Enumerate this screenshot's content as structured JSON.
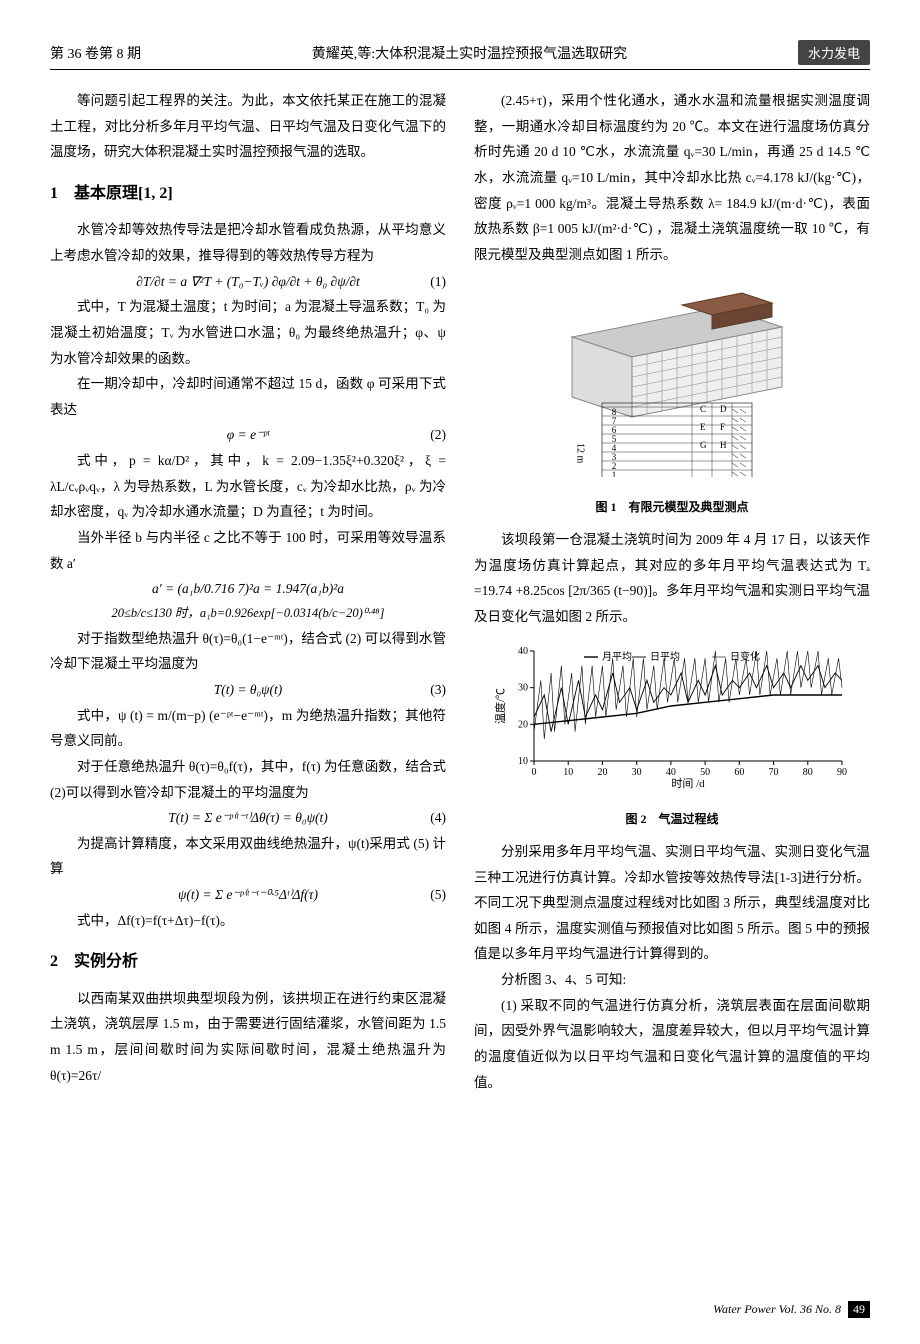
{
  "header": {
    "left": "第 36 卷第 8 期",
    "center": "黄耀英,等:大体积混凝土实时温控预报气温选取研究",
    "badge": "水力发电"
  },
  "left_col": {
    "intro": "等问题引起工程界的关注。为此，本文依托某正在施工的混凝土工程，对比分析多年月平均气温、日平均气温及日变化气温下的温度场，研究大体积混凝土实时温控预报气温的选取。",
    "sec1_title": "1　基本原理[1, 2]",
    "sec1_p1": "水管冷却等效热传导法是把冷却水管看成负热源，从平均意义上考虑水管冷却的效果，推导得到的等效热传导方程为",
    "eq1": "∂T/∂t = a ∇²T + (T₀−Tᵥ) ∂φ/∂t + θ₀ ∂ψ/∂t",
    "eq1_num": "(1)",
    "sec1_p2": "式中，T 为混凝土温度；t 为时间；a 为混凝土导温系数；T₀ 为混凝土初始温度；Tᵥ 为水管进口水温；θ₀ 为最终绝热温升；φ、ψ 为水管冷却效果的函数。",
    "sec1_p3": "在一期冷却中，冷却时间通常不超过 15 d，函数 φ 可采用下式表达",
    "eq2": "φ = e⁻ᵖᵗ",
    "eq2_num": "(2)",
    "sec1_p4": "式中，p = kα/D²，其中，k = 2.09−1.35ξ²+0.320ξ²，ξ = λL/cᵥρᵥqᵥ，λ 为导热系数，L 为水管长度，cᵥ 为冷却水比热，ρᵥ 为冷却水密度，qᵥ 为冷却水通水流量；D 为直径；t 为时间。",
    "sec1_p5": "当外半径 b 与内半径 c 之比不等于 100 时，可采用等效导温系数 a′",
    "eq_a": "a′ = (a₁b/0.716 7)²a = 1.947(a₁b)²a",
    "eq_b": "20≤b/c≤130 时，a₁b=0.926exp[−0.0314(b/c−20)⁰·⁴⁸]",
    "sec1_p6": "对于指数型绝热温升 θ(τ)=θ₀(1−e⁻ᵐᵗ)，结合式 (2) 可以得到水管冷却下混凝土平均温度为",
    "eq3": "T(t) = θ₀ψ(t)",
    "eq3_num": "(3)",
    "sec1_p7": "式中，ψ (t) = m/(m−p) (e⁻ᵖᵗ−e⁻ᵐᵗ)，m 为绝热温升指数；其他符号意义同前。",
    "sec1_p8": "对于任意绝热温升 θ(τ)=θ₀f(τ)，其中，f(τ) 为任意函数，结合式(2)可以得到水管冷却下混凝土的平均温度为",
    "eq4": "T(t) = Σ e⁻ᵖ⁽ᵗ⁻ᵗ⁾Δθ(τ) = θ₀ψ(t)",
    "eq4_num": "(4)",
    "sec1_p9": "为提高计算精度，本文采用双曲线绝热温升，ψ(t)采用式 (5) 计算",
    "eq5": "ψ(t) = Σ e⁻ᵖ⁽ᵗ⁻ᵗ⁻⁰·⁵Δᵗ⁾Δf(τ)",
    "eq5_num": "(5)",
    "sec1_p10": "式中，Δf(τ)=f(τ+Δτ)−f(τ)。",
    "sec2_title": "2　实例分析",
    "sec2_p1": "以西南某双曲拱坝典型坝段为例，该拱坝正在进行约束区混凝土浇筑，浇筑层厚 1.5 m，由于需要进行固结灌浆，水管间距为 1.5 m 1.5 m，层间间歇时间为实际间歇时间，混凝土绝热温升为 θ(τ)=26τ/"
  },
  "right_col": {
    "p1": "(2.45+τ)，采用个性化通水，通水水温和流量根据实测温度调整，一期通水冷却目标温度约为 20 ℃。本文在进行温度场仿真分析时先通 20 d 10 ℃水，水流流量 qᵥ=30 L/min，再通 25 d 14.5 ℃水，水流流量 qᵥ=10 L/min，其中冷却水比热 cᵥ=4.178 kJ/(kg·℃)，密度 ρᵥ=1 000 kg/m³。混凝土导热系数 λ= 184.9 kJ/(m·d·℃)，表面放热系数 β=1 005 kJ/(m²·d·℃) ，混凝土浇筑温度统一取 10 ℃，有限元模型及典型测点如图 1 所示。",
    "fig1_caption": "图 1　有限元模型及典型测点",
    "fig1": {
      "rows": 8,
      "row_labels": [
        "8",
        "7",
        "6",
        "5",
        "4",
        "3",
        "2",
        "1"
      ],
      "side_label": "12 m",
      "top_labels": [
        "C",
        "D"
      ],
      "mid_labels": [
        "E",
        "F"
      ],
      "low_labels": [
        "G",
        "H"
      ],
      "bottom_label": "B",
      "block_color": "#8a5a44",
      "grid_color": "#888",
      "bg_color": "#fff"
    },
    "p2": "该坝段第一仓混凝土浇筑时间为 2009 年 4 月 17 日，以该天作为温度场仿真计算起点，其对应的多年月平均气温表达式为 Tₐ =19.74 +8.25cos [2π/365 (t−90)]。多年月平均气温和实测日平均气温及日变化气温如图 2 所示。",
    "fig2_caption": "图 2　气温过程线",
    "fig2": {
      "xlabel": "时间 /d",
      "ylabel": "温度/℃",
      "legend": [
        "月平均",
        "日平均",
        "日变化"
      ],
      "xlim": [
        0,
        90
      ],
      "ylim": [
        10,
        40
      ],
      "xticks": [
        0,
        10,
        20,
        30,
        40,
        50,
        60,
        70,
        80,
        90
      ],
      "yticks": [
        10,
        20,
        30,
        40
      ],
      "line_color": "#000",
      "grid_color": "#ccc",
      "bg_color": "#fff",
      "monthly": [
        [
          0,
          20
        ],
        [
          10,
          21
        ],
        [
          20,
          22
        ],
        [
          30,
          23
        ],
        [
          40,
          25
        ],
        [
          50,
          26
        ],
        [
          60,
          27
        ],
        [
          70,
          28
        ],
        [
          80,
          28
        ],
        [
          90,
          28
        ]
      ],
      "daily": [
        [
          0,
          22
        ],
        [
          3,
          28
        ],
        [
          5,
          18
        ],
        [
          8,
          30
        ],
        [
          10,
          20
        ],
        [
          13,
          32
        ],
        [
          15,
          22
        ],
        [
          18,
          28
        ],
        [
          20,
          24
        ],
        [
          23,
          34
        ],
        [
          25,
          26
        ],
        [
          28,
          30
        ],
        [
          30,
          24
        ],
        [
          33,
          32
        ],
        [
          35,
          26
        ],
        [
          38,
          30
        ],
        [
          40,
          28
        ],
        [
          43,
          34
        ],
        [
          45,
          26
        ],
        [
          48,
          32
        ],
        [
          50,
          28
        ],
        [
          53,
          36
        ],
        [
          55,
          28
        ],
        [
          58,
          32
        ],
        [
          60,
          30
        ],
        [
          63,
          34
        ],
        [
          65,
          30
        ],
        [
          68,
          36
        ],
        [
          70,
          30
        ],
        [
          73,
          34
        ],
        [
          75,
          30
        ],
        [
          78,
          36
        ],
        [
          80,
          32
        ],
        [
          83,
          36
        ],
        [
          85,
          30
        ],
        [
          88,
          34
        ],
        [
          90,
          32
        ]
      ],
      "diurnal": [
        [
          0,
          18
        ],
        [
          2,
          32
        ],
        [
          3,
          16
        ],
        [
          5,
          34
        ],
        [
          6,
          18
        ],
        [
          8,
          36
        ],
        [
          9,
          20
        ],
        [
          11,
          34
        ],
        [
          12,
          18
        ],
        [
          14,
          36
        ],
        [
          15,
          20
        ],
        [
          17,
          36
        ],
        [
          18,
          22
        ],
        [
          20,
          36
        ],
        [
          21,
          22
        ],
        [
          23,
          38
        ],
        [
          24,
          24
        ],
        [
          26,
          36
        ],
        [
          27,
          22
        ],
        [
          29,
          38
        ],
        [
          30,
          22
        ],
        [
          32,
          38
        ],
        [
          33,
          24
        ],
        [
          35,
          36
        ],
        [
          36,
          24
        ],
        [
          38,
          38
        ],
        [
          39,
          26
        ],
        [
          41,
          38
        ],
        [
          42,
          26
        ],
        [
          44,
          38
        ],
        [
          45,
          26
        ],
        [
          47,
          38
        ],
        [
          48,
          26
        ],
        [
          50,
          38
        ],
        [
          51,
          26
        ],
        [
          53,
          40
        ],
        [
          54,
          26
        ],
        [
          56,
          38
        ],
        [
          57,
          26
        ],
        [
          59,
          38
        ],
        [
          60,
          28
        ],
        [
          62,
          38
        ],
        [
          63,
          28
        ],
        [
          65,
          40
        ],
        [
          66,
          28
        ],
        [
          68,
          40
        ],
        [
          69,
          28
        ],
        [
          71,
          38
        ],
        [
          72,
          28
        ],
        [
          74,
          40
        ],
        [
          75,
          28
        ],
        [
          77,
          40
        ],
        [
          78,
          30
        ],
        [
          80,
          40
        ],
        [
          81,
          30
        ],
        [
          83,
          40
        ],
        [
          84,
          28
        ],
        [
          86,
          38
        ],
        [
          87,
          28
        ],
        [
          89,
          38
        ],
        [
          90,
          30
        ]
      ]
    },
    "p3": "分别采用多年月平均气温、实测日平均气温、实测日变化气温三种工况进行仿真计算。冷却水管按等效热传导法[1-3]进行分析。不同工况下典型测点温度过程线对比如图 3 所示，典型线温度对比如图 4 所示，温度实测值与预报值对比如图 5 所示。图 5 中的预报值是以多年月平均气温进行计算得到的。",
    "p4": "分析图 3、4、5 可知:",
    "p5": "(1) 采取不同的气温进行仿真分析，浇筑层表面在层面间歇期间，因受外界气温影响较大，温度差异较大，但以月平均气温计算的温度值近似为以日平均气温和日变化气温计算的温度值的平均值。"
  },
  "footer": {
    "text": "Water Power Vol. 36 No. 8",
    "page": "49"
  }
}
